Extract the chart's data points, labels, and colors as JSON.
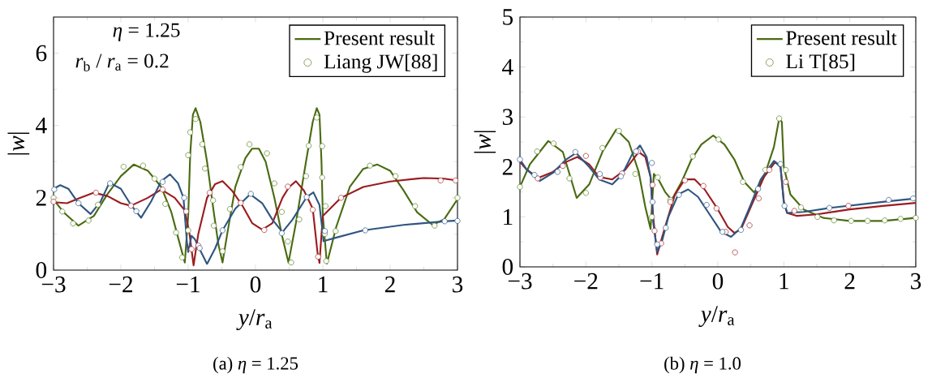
{
  "chart_data": [
    {
      "type": "line",
      "xlabel": "*y*/*r*$_{a}$",
      "ylabel": "|*w*|",
      "xlim": [
        -3,
        3
      ],
      "ylim": [
        0,
        7
      ],
      "xticks": [
        {
          "value": -3,
          "label": "−3"
        },
        {
          "value": -2,
          "label": "−2"
        },
        {
          "value": -1,
          "label": "−1"
        },
        0,
        1,
        2,
        3
      ],
      "yticks": [
        0,
        2,
        4,
        6
      ],
      "legend": "top right",
      "annotations": [
        "*η* = 1.25",
        "*r*$_{b}$ / *r*$_{a}$ = 0.2",
        "(a) *η* = 1.25"
      ],
      "series": [
        {
          "name": "Present result",
          "type": "line",
          "marker": "none",
          "color": "#4a6b12",
          "x": [
            -3,
            -2.85,
            -2.63,
            -2.4,
            -2.2,
            -2.0,
            -1.81,
            -1.6,
            -1.4,
            -1.25,
            -1.15,
            -1.05,
            -1.0,
            -0.97,
            -0.93,
            -0.89,
            -0.82,
            -0.72,
            -0.62,
            -0.55,
            -0.49,
            -0.42,
            -0.3,
            -0.15,
            -0.05,
            0.05,
            0.15,
            0.28,
            0.4,
            0.49,
            0.6,
            0.75,
            0.85,
            0.91,
            0.95,
            0.98,
            1.0,
            1.06,
            1.2,
            1.4,
            1.6,
            1.81,
            2.0,
            2.2,
            2.4,
            2.63,
            2.8,
            3.0
          ],
          "values": [
            1.95,
            1.6,
            1.23,
            1.5,
            2.1,
            2.6,
            2.92,
            2.75,
            2.3,
            1.6,
            0.9,
            0.21,
            1.5,
            3.2,
            4.3,
            4.48,
            4.1,
            3.0,
            1.6,
            0.7,
            0.21,
            1.0,
            2.3,
            3.1,
            3.36,
            3.36,
            3.0,
            2.0,
            0.9,
            0.21,
            1.3,
            3.0,
            4.1,
            4.48,
            4.3,
            3.0,
            1.5,
            0.18,
            1.2,
            2.3,
            2.8,
            2.92,
            2.75,
            2.2,
            1.6,
            1.25,
            1.4,
            1.96
          ]
        },
        {
          "name": "Liang JW[88]",
          "type": "scatter",
          "marker": "circle",
          "color": "#6b8e3a",
          "x": [
            -3,
            -2.87,
            -2.71,
            -2.48,
            -2.34,
            -1.96,
            -1.67,
            -1.5,
            -1.34,
            -1.18,
            -1.09,
            -1.0,
            -1.0,
            -0.97,
            -0.89,
            -0.79,
            -0.75,
            -0.63,
            -0.62,
            -0.49,
            -0.38,
            -0.22,
            -0.09,
            0.17,
            0.28,
            0.39,
            0.48,
            0.53,
            0.65,
            0.75,
            0.79,
            0.91,
            0.99,
            0.99,
            1.04,
            1.03,
            1.05,
            1.19,
            1.7,
            2.08,
            2.37,
            2.66,
            3.0
          ],
          "values": [
            2.0,
            1.62,
            1.29,
            1.37,
            1.81,
            2.86,
            2.89,
            2.53,
            1.83,
            1.04,
            0.35,
            1.1,
            3.18,
            3.81,
            4.18,
            3.48,
            2.81,
            1.93,
            1.23,
            0.52,
            1.69,
            2.85,
            3.48,
            3.23,
            2.4,
            1.61,
            0.79,
            0.21,
            1.4,
            2.6,
            3.44,
            4.22,
            3.43,
            2.56,
            1.77,
            1.0,
            0.25,
            1.08,
            2.89,
            2.6,
            1.77,
            1.23,
            2.0
          ]
        },
        {
          "marker": "none",
          "color": "#9b1c1f",
          "x": [
            -3,
            -2.8,
            -2.6,
            -2.4,
            -2.2,
            -2.0,
            -1.85,
            -1.6,
            -1.4,
            -1.2,
            -1.05,
            -0.98,
            -0.92,
            -0.85,
            -0.72,
            -0.6,
            -0.49,
            -0.35,
            -0.2,
            -0.05,
            0.1,
            0.25,
            0.4,
            0.5,
            0.6,
            0.72,
            0.85,
            0.92,
            0.95,
            1.0,
            1.27,
            1.6,
            2.0,
            2.5,
            2.8,
            3.0
          ],
          "values": [
            1.88,
            1.85,
            2.0,
            2.14,
            2.05,
            1.85,
            1.78,
            2.0,
            2.23,
            2.0,
            1.65,
            1.0,
            0.13,
            1.0,
            2.0,
            2.38,
            2.46,
            2.2,
            1.8,
            1.3,
            1.12,
            1.3,
            2.0,
            2.3,
            2.46,
            2.2,
            1.7,
            0.5,
            0.2,
            1.5,
            2.0,
            2.3,
            2.45,
            2.55,
            2.53,
            2.48
          ]
        },
        {
          "marker": "none",
          "color": "#2f5680",
          "x": [
            -3,
            -2.9,
            -2.78,
            -2.63,
            -2.45,
            -2.3,
            -2.17,
            -2.0,
            -1.85,
            -1.7,
            -1.55,
            -1.4,
            -1.27,
            -1.15,
            -1.07,
            -1.02,
            -1.0,
            -0.95,
            -0.9,
            -0.84,
            -0.72,
            -0.6,
            -0.49,
            -0.3,
            -0.08,
            0.1,
            0.25,
            0.4,
            0.55,
            0.76,
            0.86,
            0.95,
            1.0,
            1.01,
            1.2,
            1.6,
            2.2,
            2.8,
            3.0
          ],
          "values": [
            2.25,
            2.35,
            2.25,
            1.85,
            1.55,
            1.9,
            2.42,
            2.25,
            1.8,
            1.45,
            1.9,
            2.46,
            2.65,
            2.4,
            2.0,
            0.8,
            0.5,
            0.95,
            0.85,
            0.62,
            0.17,
            0.6,
            1.1,
            1.7,
            2.1,
            1.85,
            1.4,
            1.05,
            1.4,
            2.02,
            2.15,
            1.8,
            1.0,
            0.8,
            0.9,
            1.1,
            1.25,
            1.35,
            1.37
          ]
        },
        {
          "type": "scatter",
          "marker": "circle",
          "color": "#a83a3d",
          "x": [
            -3,
            -2.37,
            -1.85,
            -1.38,
            -1.03,
            -0.95,
            -0.85,
            -0.68,
            -0.22,
            0.13,
            0.48,
            0.85,
            0.93,
            1.27,
            2.75,
            2.97
          ],
          "values": [
            1.89,
            2.14,
            1.78,
            2.23,
            1.62,
            0.58,
            0.68,
            2.14,
            1.86,
            1.11,
            2.31,
            1.67,
            0.37,
            2.0,
            2.48,
            2.48
          ]
        },
        {
          "type": "scatter",
          "marker": "circle",
          "color": "#3d6592",
          "x": [
            -2.99,
            -2.63,
            -2.16,
            -1.77,
            -1.38,
            -1.06,
            -0.83,
            -0.49,
            -0.07,
            0.39,
            0.76,
            1.03,
            1.63,
            2.81,
            3.0
          ],
          "values": [
            2.23,
            1.85,
            2.4,
            1.63,
            2.44,
            2.0,
            0.61,
            1.1,
            2.11,
            1.02,
            2.02,
            1.08,
            1.1,
            1.35,
            1.36
          ]
        }
      ]
    },
    {
      "type": "line",
      "xlabel": "*y*/*r*$_{a}$",
      "ylabel": "|*w*|",
      "xlim": [
        -3,
        3
      ],
      "ylim": [
        0,
        5
      ],
      "xticks": [
        {
          "value": -3,
          "label": "−3"
        },
        {
          "value": -2,
          "label": "−2"
        },
        {
          "value": -1,
          "label": "−1"
        },
        0,
        1,
        2,
        3
      ],
      "yticks": [
        0,
        1,
        2,
        3,
        4,
        5
      ],
      "legend": "top right",
      "annotations": [
        "(b) *η* = 1.0"
      ],
      "series": [
        {
          "name": "Present result",
          "type": "line",
          "marker": "none",
          "color": "#4a6b12",
          "x": [
            -3,
            -2.85,
            -2.57,
            -2.35,
            -2.14,
            -1.95,
            -1.75,
            -1.54,
            -1.35,
            -1.2,
            -1.1,
            -1.02,
            -0.97,
            -0.9,
            -0.8,
            -0.7,
            -0.55,
            -0.4,
            -0.25,
            -0.07,
            0.1,
            0.25,
            0.4,
            0.55,
            0.7,
            0.85,
            0.93,
            0.97,
            1.0,
            1.1,
            1.3,
            1.6,
            2.0,
            2.5,
            3.0
          ],
          "values": [
            1.6,
            2.05,
            2.52,
            2.3,
            1.38,
            1.65,
            2.3,
            2.75,
            2.5,
            1.9,
            1.2,
            0.76,
            1.86,
            1.75,
            1.5,
            1.34,
            1.7,
            2.15,
            2.45,
            2.63,
            2.45,
            2.15,
            1.7,
            1.49,
            1.8,
            2.4,
            2.97,
            2.9,
            2.0,
            1.45,
            1.15,
            0.98,
            0.92,
            0.92,
            0.98
          ]
        },
        {
          "name": "Li T[85]",
          "type": "scatter",
          "marker": "circle",
          "color": "#6b8e3a",
          "x": [
            -3,
            -2.74,
            -2.49,
            -2.25,
            -2.0,
            -1.75,
            -1.5,
            -1.25,
            -1.0,
            -0.91,
            -0.72,
            -0.38,
            0.01,
            0.38,
            0.72,
            0.93,
            1.03,
            1.26,
            1.51,
            1.76,
            2.02,
            2.27,
            2.53,
            2.77,
            3.0
          ],
          "values": [
            1.6,
            2.31,
            2.47,
            1.77,
            1.48,
            2.38,
            2.72,
            1.86,
            1.0,
            1.79,
            1.34,
            2.21,
            2.55,
            1.7,
            1.94,
            2.97,
            1.94,
            1.19,
            1.0,
            0.93,
            0.92,
            0.92,
            0.93,
            0.96,
            0.98
          ]
        },
        {
          "marker": "none",
          "color": "#9b1c1f",
          "x": [
            -3,
            -2.9,
            -2.72,
            -2.5,
            -2.3,
            -2.13,
            -1.95,
            -1.8,
            -1.6,
            -1.4,
            -1.2,
            -1.1,
            -1.02,
            -0.98,
            -0.92,
            -0.8,
            -0.65,
            -0.5,
            -0.35,
            -0.2,
            0.0,
            0.15,
            0.25,
            0.35,
            0.5,
            0.7,
            0.87,
            0.95,
            1.0,
            1.05,
            1.2,
            1.5,
            2.0,
            2.5,
            3.0
          ],
          "values": [
            2.1,
            1.95,
            1.78,
            1.9,
            2.1,
            2.2,
            2.05,
            1.8,
            1.75,
            1.95,
            2.3,
            2.2,
            1.8,
            1.0,
            0.25,
            0.8,
            1.45,
            1.75,
            1.75,
            1.55,
            1.15,
            0.8,
            0.68,
            0.75,
            1.2,
            1.8,
            2.1,
            2.0,
            1.3,
            1.08,
            1.02,
            1.05,
            1.15,
            1.22,
            1.28
          ]
        },
        {
          "marker": "none",
          "color": "#2f5680",
          "x": [
            -3,
            -2.9,
            -2.7,
            -2.5,
            -2.3,
            -2.15,
            -1.95,
            -1.8,
            -1.6,
            -1.45,
            -1.3,
            -1.18,
            -1.08,
            -1.02,
            -0.98,
            -0.92,
            -0.85,
            -0.75,
            -0.6,
            -0.45,
            -0.3,
            -0.15,
            0.05,
            0.2,
            0.35,
            0.5,
            0.65,
            0.85,
            0.95,
            1.0,
            1.05,
            1.3,
            1.7,
            2.5,
            3.0
          ],
          "values": [
            2.15,
            1.95,
            1.72,
            1.88,
            2.15,
            2.28,
            2.0,
            1.75,
            1.65,
            1.85,
            2.25,
            2.43,
            2.2,
            1.8,
            0.9,
            0.3,
            0.5,
            1.0,
            1.45,
            1.55,
            1.4,
            1.1,
            0.7,
            0.6,
            0.78,
            1.25,
            1.75,
            2.12,
            2.0,
            1.3,
            1.08,
            1.1,
            1.18,
            1.3,
            1.37
          ]
        },
        {
          "type": "scatter",
          "marker": "circle",
          "color": "#a83a3d",
          "x": [
            -2.73,
            -2.35,
            -2.0,
            -1.78,
            -1.45,
            -1.21,
            -0.99,
            -0.96,
            -0.86,
            -0.72,
            -0.5,
            -0.22,
            -0.02,
            0.12,
            0.26,
            0.48,
            0.62,
            0.78,
            1.03,
            1.16,
            1.98
          ],
          "values": [
            1.77,
            2.02,
            2.22,
            1.79,
            1.87,
            2.31,
            1.64,
            0.72,
            0.47,
            1.3,
            1.73,
            1.62,
            1.17,
            0.7,
            0.29,
            0.83,
            1.37,
            1.94,
            1.7,
            1.12,
            1.22
          ]
        },
        {
          "type": "scatter",
          "marker": "circle",
          "color": "#3d6592",
          "x": [
            -3,
            -2.78,
            -2.43,
            -2.16,
            -1.79,
            -1.47,
            -1.24,
            -1.0,
            -0.99,
            -0.92,
            -0.79,
            -0.59,
            -0.17,
            0.07,
            0.35,
            0.61,
            0.95,
            1.01,
            1.69,
            2.59,
            2.96
          ],
          "values": [
            2.15,
            1.84,
            1.9,
            2.3,
            1.86,
            1.81,
            2.31,
            2.08,
            1.3,
            0.45,
            0.78,
            1.44,
            1.24,
            0.7,
            0.74,
            1.56,
            2.06,
            1.22,
            1.18,
            1.34,
            1.37
          ]
        }
      ]
    }
  ]
}
